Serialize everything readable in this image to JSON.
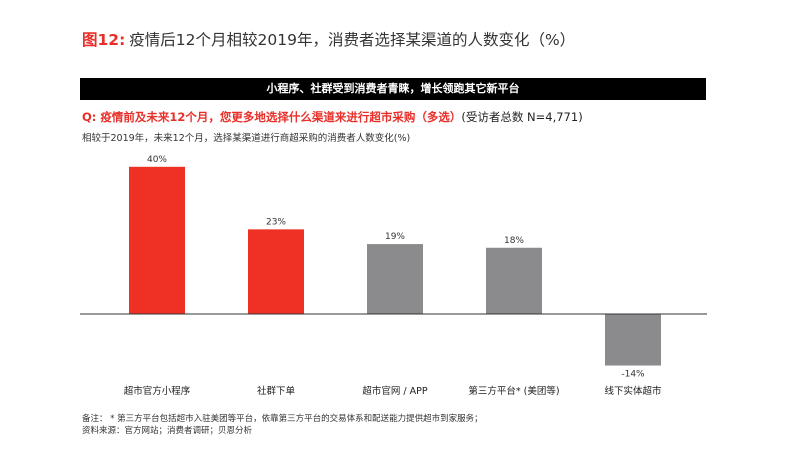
{
  "figure": {
    "label": "图12:",
    "title": "疫情后12个月相较2019年，消费者选择某渠道的人数变化（%）"
  },
  "banner": "小程序、社群受到消费者青睐，增长领跑其它新平台",
  "question": {
    "prefix": "Q: 疫情前及未来12个月，您更多地选择什么渠道来进行超市采购（多选）",
    "sample": "(受访者总数 N=4,771)"
  },
  "subtitle": "相较于2019年，未来12个月，选择某渠道进行商超采购的消费者人数变化(%)",
  "colors": {
    "positive_highlight": "#ee3124",
    "neutral": "#8b8b8d",
    "axis": "#333333"
  },
  "chart_data": {
    "type": "bar",
    "categories": [
      "超市官方小程序",
      "社群下单",
      "超市官网 / APP",
      "第三方平台* (美团等)",
      "线下实体超市"
    ],
    "values": [
      40,
      23,
      19,
      18,
      -14
    ],
    "value_labels": [
      "40%",
      "23%",
      "19%",
      "18%",
      "-14%"
    ],
    "bar_colors": [
      "#ee3124",
      "#ee3124",
      "#8b8b8d",
      "#8b8b8d",
      "#8b8b8d"
    ],
    "unit": "%",
    "ylim": [
      -14,
      40
    ],
    "grid": false,
    "legend": "none"
  },
  "footnotes": [
    "备注：  * 第三方平台包括超市入驻美团等平台，依靠第三方平台的交易体系和配送能力提供超市到家服务；",
    "资料来源：官方网站；消费者调研；贝恩分析"
  ]
}
